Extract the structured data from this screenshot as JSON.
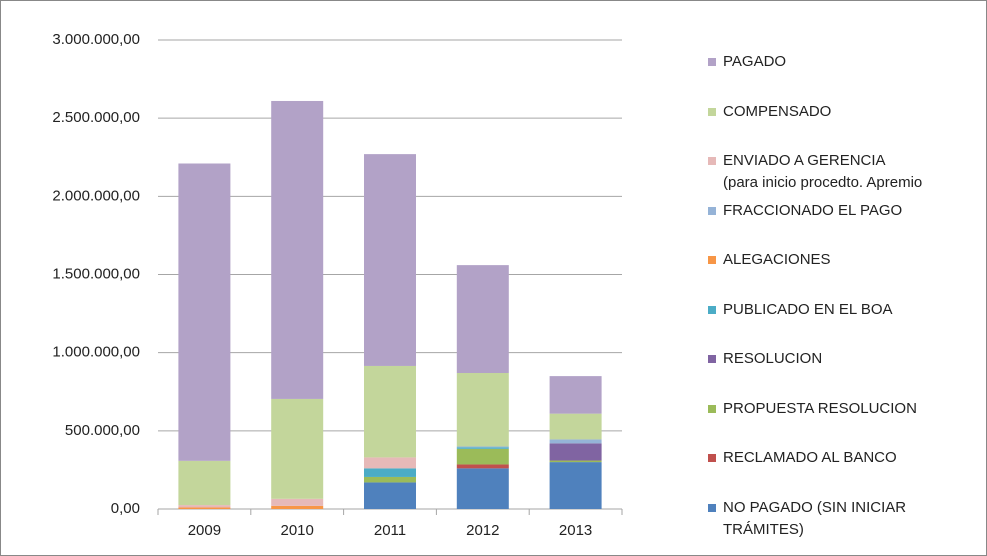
{
  "chart_data": {
    "type": "stacked_bar",
    "categories": [
      "2009",
      "2010",
      "2011",
      "2012",
      "2013"
    ],
    "series": [
      {
        "name": "NO PAGADO (SIN INICIAR\nTRÁMITES)",
        "color": "#4f81bd",
        "values": [
          0,
          0,
          170000,
          260000,
          300000
        ]
      },
      {
        "name": "RECLAMADO AL BANCO",
        "color": "#c0504d",
        "values": [
          0,
          0,
          0,
          25000,
          0
        ]
      },
      {
        "name": "PROPUESTA RESOLUCION",
        "color": "#9bbb59",
        "values": [
          0,
          0,
          35000,
          100000,
          10000
        ]
      },
      {
        "name": "RESOLUCION",
        "color": "#8064a2",
        "values": [
          0,
          0,
          0,
          0,
          110000
        ]
      },
      {
        "name": "PUBLICADO EN EL BOA",
        "color": "#4bacc6",
        "values": [
          0,
          0,
          55000,
          10000,
          0
        ]
      },
      {
        "name": "ALEGACIONES",
        "color": "#f79646",
        "values": [
          10000,
          20000,
          0,
          0,
          0
        ]
      },
      {
        "name": "FRACCIONADO EL PAGO",
        "color": "#95b3d7",
        "values": [
          0,
          0,
          0,
          5000,
          25000
        ]
      },
      {
        "name": "ENVIADO A GERENCIA\n(para inicio procedto. Apremio",
        "color": "#e6b9b8",
        "values": [
          15000,
          45000,
          70000,
          0,
          0
        ]
      },
      {
        "name": "COMPENSADO",
        "color": "#c3d69b",
        "values": [
          283000,
          639000,
          585000,
          470000,
          165000
        ]
      },
      {
        "name": "PAGADO",
        "color": "#b2a2c7",
        "values": [
          1902000,
          1906000,
          1355000,
          690000,
          240000
        ]
      }
    ],
    "ylim": [
      0,
      3000000
    ],
    "yticks": [
      {
        "value": 0,
        "label": "0,00"
      },
      {
        "value": 500000,
        "label": "500.000,00"
      },
      {
        "value": 1000000,
        "label": "1.000.000,00"
      },
      {
        "value": 1500000,
        "label": "1.500.000,00"
      },
      {
        "value": 2000000,
        "label": "2.000.000,00"
      },
      {
        "value": 2500000,
        "label": "2.500.000,00"
      },
      {
        "value": 3000000,
        "label": "3.000.000,00"
      }
    ],
    "grid": true
  }
}
